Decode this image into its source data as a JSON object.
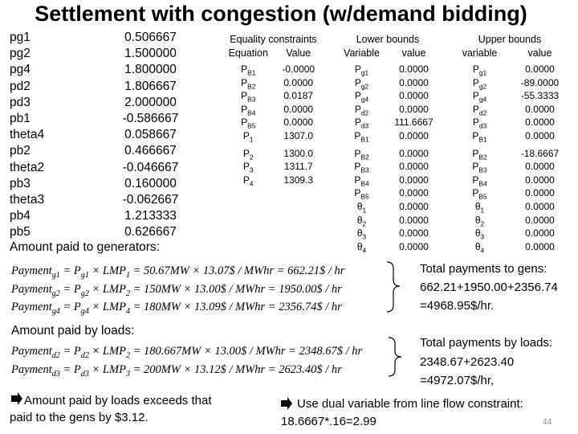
{
  "title": "Settlement with congestion (w/demand bidding)",
  "left_list": [
    [
      "pg1",
      "0.506667"
    ],
    [
      "pg2",
      "1.500000"
    ],
    [
      "pg4",
      "1.800000"
    ],
    [
      "pd2",
      "1.806667"
    ],
    [
      "pd3",
      "2.000000"
    ],
    [
      "pb1",
      "-0.586667"
    ],
    [
      "theta4",
      "0.058667"
    ],
    [
      "pb2",
      "0.466667"
    ],
    [
      "theta2",
      "-0.046667"
    ],
    [
      "pb3",
      "0.160000"
    ],
    [
      "theta3",
      "-0.062667"
    ],
    [
      "pb4",
      "1.213333"
    ],
    [
      "pb5",
      "0.626667"
    ]
  ],
  "gens_heading": "Amount paid to generators:",
  "tables": [
    {
      "title": "Equality constraints",
      "columns": [
        "Equation",
        "Value"
      ],
      "rows": [
        {
          "sym": "P",
          "sub": "B1",
          "value": "-0.0000"
        },
        {
          "sym": "P",
          "sub": "B2",
          "value": "0.0000"
        },
        {
          "sym": "P",
          "sub": "B3",
          "value": "0.0187"
        },
        {
          "sym": "P",
          "sub": "B4",
          "value": "0.0000"
        },
        {
          "sym": "P",
          "sub": "B5",
          "value": "0.0000"
        },
        {
          "sym": "P",
          "sub": "1",
          "value": "1307.0"
        },
        {
          "sym": "P",
          "sub": "2",
          "value": "1300.0"
        },
        {
          "sym": "P",
          "sub": "3",
          "value": "1311.7"
        },
        {
          "sym": "P",
          "sub": "4",
          "value": "1309.3"
        }
      ]
    },
    {
      "title": "Lower bounds",
      "columns": [
        "Variable",
        "value"
      ],
      "rows": [
        {
          "sym": "P",
          "sub": "g1",
          "value": "0.0000"
        },
        {
          "sym": "P",
          "sub": "g2",
          "value": "0.0000"
        },
        {
          "sym": "P",
          "sub": "g4",
          "value": "0.0000"
        },
        {
          "sym": "P",
          "sub": "d2",
          "value": "0.0000"
        },
        {
          "sym": "P",
          "sub": "d3",
          "value": "111.6667"
        },
        {
          "sym": "P",
          "sub": "B1",
          "value": "0.0000"
        },
        {
          "sym": "P",
          "sub": "B2",
          "value": "0.0000"
        },
        {
          "sym": "P",
          "sub": "B3",
          "value": "0.0000"
        },
        {
          "sym": "P",
          "sub": "B4",
          "value": "0.0000"
        },
        {
          "sym": "P",
          "sub": "B5",
          "value": "0.0000"
        },
        {
          "sym": "θ",
          "sub": "1",
          "value": "0.0000"
        },
        {
          "sym": "θ",
          "sub": "2",
          "value": "0.0000"
        },
        {
          "sym": "θ",
          "sub": "3",
          "value": "0.0000"
        },
        {
          "sym": "θ",
          "sub": "4",
          "value": "0.0000"
        }
      ]
    },
    {
      "title": "Upper bounds",
      "columns": [
        "variable",
        "value"
      ],
      "rows": [
        {
          "sym": "P",
          "sub": "g1",
          "value": "0.0000"
        },
        {
          "sym": "P",
          "sub": "g2",
          "value": "-89.0000"
        },
        {
          "sym": "P",
          "sub": "g4",
          "value": "-55.3333"
        },
        {
          "sym": "P",
          "sub": "d2",
          "value": "0.0000"
        },
        {
          "sym": "P",
          "sub": "d3",
          "value": "0.0000"
        },
        {
          "sym": "P",
          "sub": "B1",
          "value": "0.0000"
        },
        {
          "sym": "P",
          "sub": "B2",
          "value": "-18.6667"
        },
        {
          "sym": "P",
          "sub": "B3",
          "value": "0.0000"
        },
        {
          "sym": "P",
          "sub": "B4",
          "value": "0.0000"
        },
        {
          "sym": "P",
          "sub": "B5",
          "value": "0.0000"
        },
        {
          "sym": "θ",
          "sub": "1",
          "value": "0.0000"
        },
        {
          "sym": "θ",
          "sub": "2",
          "value": "0.0000"
        },
        {
          "sym": "θ",
          "sub": "3",
          "value": "0.0000"
        },
        {
          "sym": "θ",
          "sub": "4",
          "value": "0.0000"
        }
      ]
    }
  ],
  "gen_equations": [
    [
      {
        "t": "Payment"
      },
      {
        "s": "g1"
      },
      {
        "t": " = P"
      },
      {
        "s": "g1"
      },
      {
        "t": " × LMP"
      },
      {
        "s": "1"
      },
      {
        "t": " = 50.67MW × 13.07$ / MWhr = 662.21$ / hr"
      }
    ],
    [
      {
        "t": "Payment"
      },
      {
        "s": "g2"
      },
      {
        "t": " = P"
      },
      {
        "s": "g2"
      },
      {
        "t": " × LMP"
      },
      {
        "s": "2"
      },
      {
        "t": " = 150MW × 13.00$ / MWhr = 1950.00$ / hr"
      }
    ],
    [
      {
        "t": "Payment"
      },
      {
        "s": "g4"
      },
      {
        "t": " = P"
      },
      {
        "s": "g4"
      },
      {
        "t": " × LMP"
      },
      {
        "s": "4"
      },
      {
        "t": " = 180MW × 13.09$ / MWhr = 2356.74$ / hr"
      }
    ]
  ],
  "gen_total": [
    "Total payments to gens:",
    "662.21+1950.00+2356.74",
    "=4968.95$/hr."
  ],
  "loads_heading": "Amount paid by loads:",
  "load_equations": [
    [
      {
        "t": "Payment"
      },
      {
        "s": "d2"
      },
      {
        "t": " = P"
      },
      {
        "s": "d2"
      },
      {
        "t": " × LMP"
      },
      {
        "s": "2"
      },
      {
        "t": " = 180.667MW × 13.00$ / MWhr = 2348.67$ / hr"
      }
    ],
    [
      {
        "t": "Payment"
      },
      {
        "s": "d3"
      },
      {
        "t": " = P"
      },
      {
        "s": "d3"
      },
      {
        "t": " × LMP"
      },
      {
        "s": "3"
      },
      {
        "t": " = 200MW × 13.12$ / MWhr = 2623.40$ / hr"
      }
    ]
  ],
  "load_total": [
    "Total payments by loads:",
    "2348.67+2623.40",
    "=4972.07$/hr,"
  ],
  "conclusion_left": [
    "Amount paid by loads exceeds that",
    "paid to the gens by $3.12."
  ],
  "conclusion_right": [
    "Use dual variable from line flow constraint:",
    "18.6667*.16=2.99"
  ],
  "page_number": "44"
}
